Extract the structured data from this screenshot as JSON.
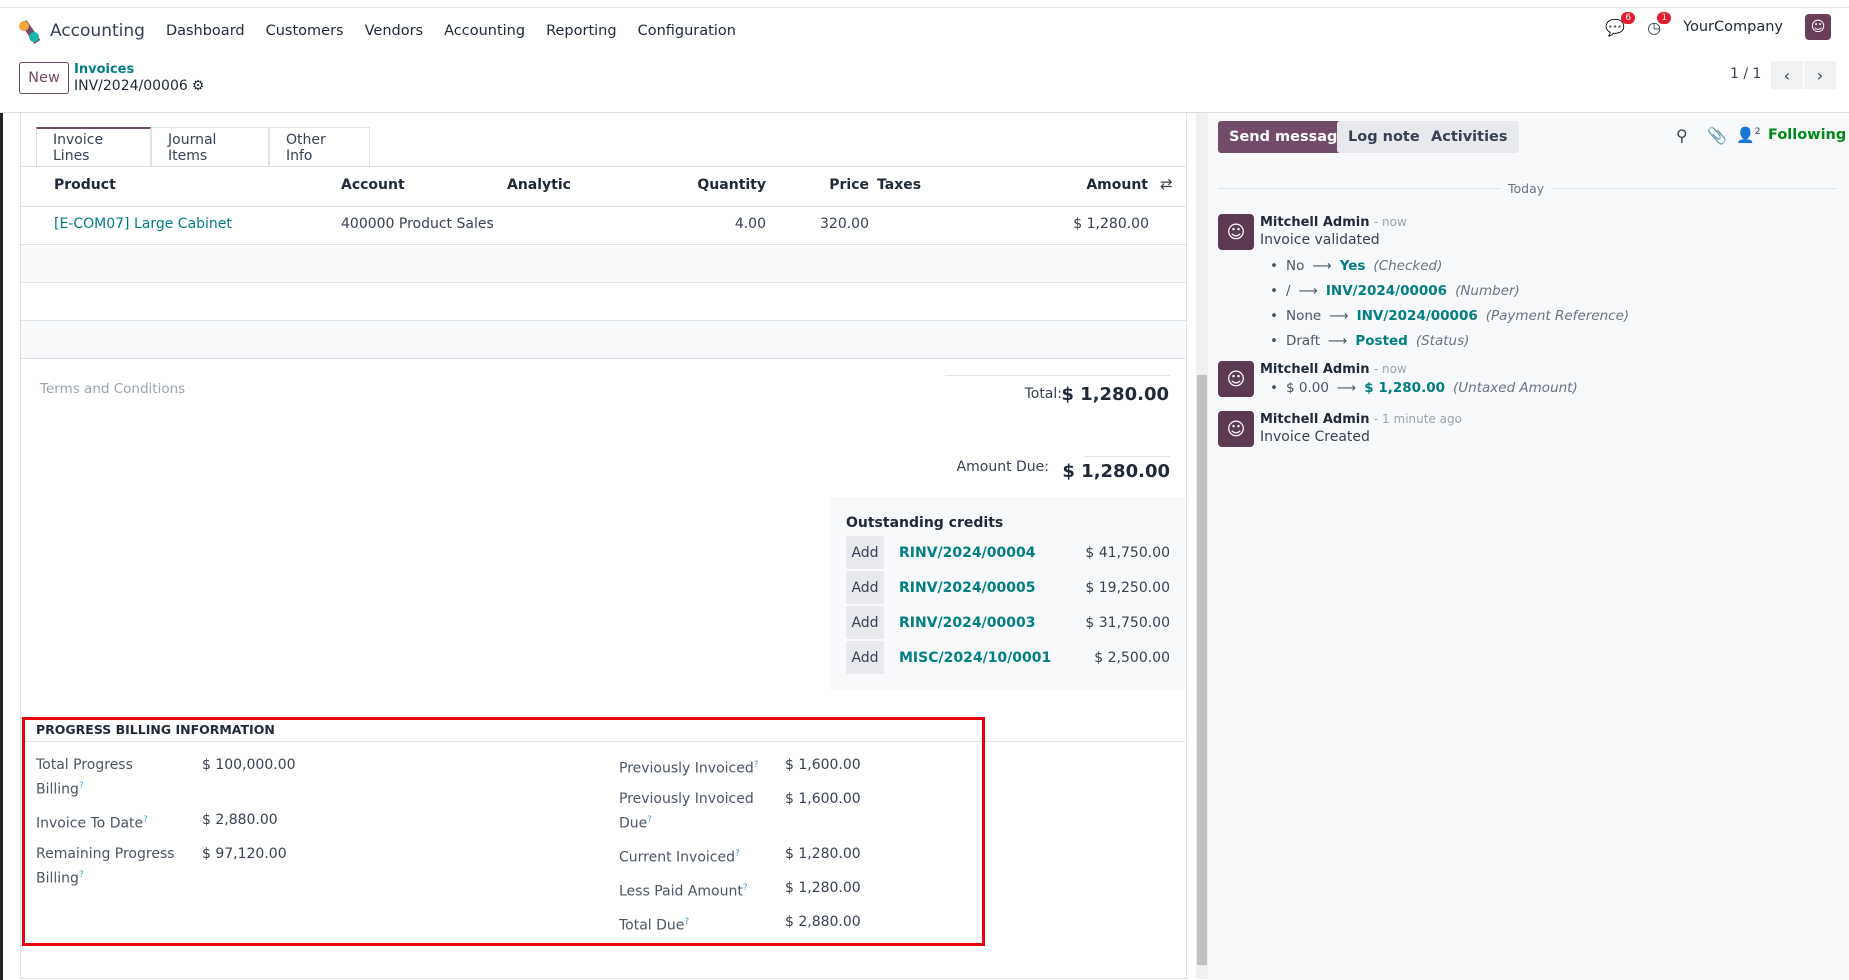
{
  "nav": {
    "app": "Accounting",
    "menu": [
      "Dashboard",
      "Customers",
      "Vendors",
      "Accounting",
      "Reporting",
      "Configuration"
    ],
    "messages_count": "6",
    "activities_count": "1",
    "company": "YourCompany"
  },
  "control": {
    "new_label": "New",
    "breadcrumb_parent": "Invoices",
    "record": "INV/2024/00006",
    "pager": "1 / 1"
  },
  "tabs": [
    "Invoice Lines",
    "Journal Items",
    "Other Info"
  ],
  "lines": {
    "headers": [
      "Product",
      "Account",
      "Analytic",
      "Quantity",
      "Price",
      "Taxes",
      "Amount"
    ],
    "rows": [
      {
        "product": "[E-COM07] Large Cabinet",
        "account": "400000 Product Sales",
        "analytic": "",
        "quantity": "4.00",
        "price": "320.00",
        "taxes": "",
        "amount": "$ 1,280.00"
      }
    ]
  },
  "terms_placeholder": "Terms and Conditions",
  "totals": {
    "total_label": "Total:",
    "total": "$ 1,280.00",
    "due_label": "Amount Due:",
    "due": "$ 1,280.00"
  },
  "credits": {
    "title": "Outstanding credits",
    "add_label": "Add",
    "items": [
      {
        "ref": "RINV/2024/00004",
        "amount": "$ 41,750.00"
      },
      {
        "ref": "RINV/2024/00005",
        "amount": "$ 19,250.00"
      },
      {
        "ref": "RINV/2024/00003",
        "amount": "$ 31,750.00"
      },
      {
        "ref": "MISC/2024/10/0001",
        "amount": "$ 2,500.00"
      }
    ]
  },
  "progress": {
    "title": "PROGRESS BILLING INFORMATION",
    "left": [
      {
        "label": "Total Progress Billing",
        "value": "$ 100,000.00"
      },
      {
        "label": "Invoice To Date",
        "value": "$ 2,880.00"
      },
      {
        "label": "Remaining Progress Billing",
        "value": "$ 97,120.00"
      }
    ],
    "right": [
      {
        "label": "Previously Invoiced",
        "value": "$ 1,600.00"
      },
      {
        "label": "Previously Invoiced Due",
        "value": "$ 1,600.00"
      },
      {
        "label": "Current Invoiced",
        "value": "$ 1,280.00"
      },
      {
        "label": "Less Paid Amount",
        "value": "$ 1,280.00"
      },
      {
        "label": "Total Due",
        "value": "$ 2,880.00"
      }
    ],
    "help": "?"
  },
  "chatter": {
    "send": "Send message",
    "log": "Log note",
    "activities": "Activities",
    "followers": "2",
    "following": "Following",
    "day": "Today",
    "messages": [
      {
        "author": "Mitchell Admin",
        "time": "- now",
        "body": "Invoice validated",
        "changes": [
          {
            "old": "No",
            "new": "Yes",
            "field": "(Checked)"
          },
          {
            "old": "/",
            "new": "INV/2024/00006",
            "field": "(Number)"
          },
          {
            "old": "None",
            "new": "INV/2024/00006",
            "field": "(Payment Reference)"
          },
          {
            "old": "Draft",
            "new": "Posted",
            "field": "(Status)"
          }
        ]
      },
      {
        "author": "Mitchell Admin",
        "time": "- now",
        "body": "",
        "changes": [
          {
            "old": "$ 0.00",
            "new": "$ 1,280.00",
            "field": "(Untaxed Amount)"
          }
        ]
      },
      {
        "author": "Mitchell Admin",
        "time": "- 1 minute ago",
        "body": "Invoice Created",
        "changes": []
      }
    ]
  },
  "colors": {
    "brand": "#714b67",
    "link": "#017e84",
    "highlight": "#e8000e",
    "following": "#008818"
  }
}
